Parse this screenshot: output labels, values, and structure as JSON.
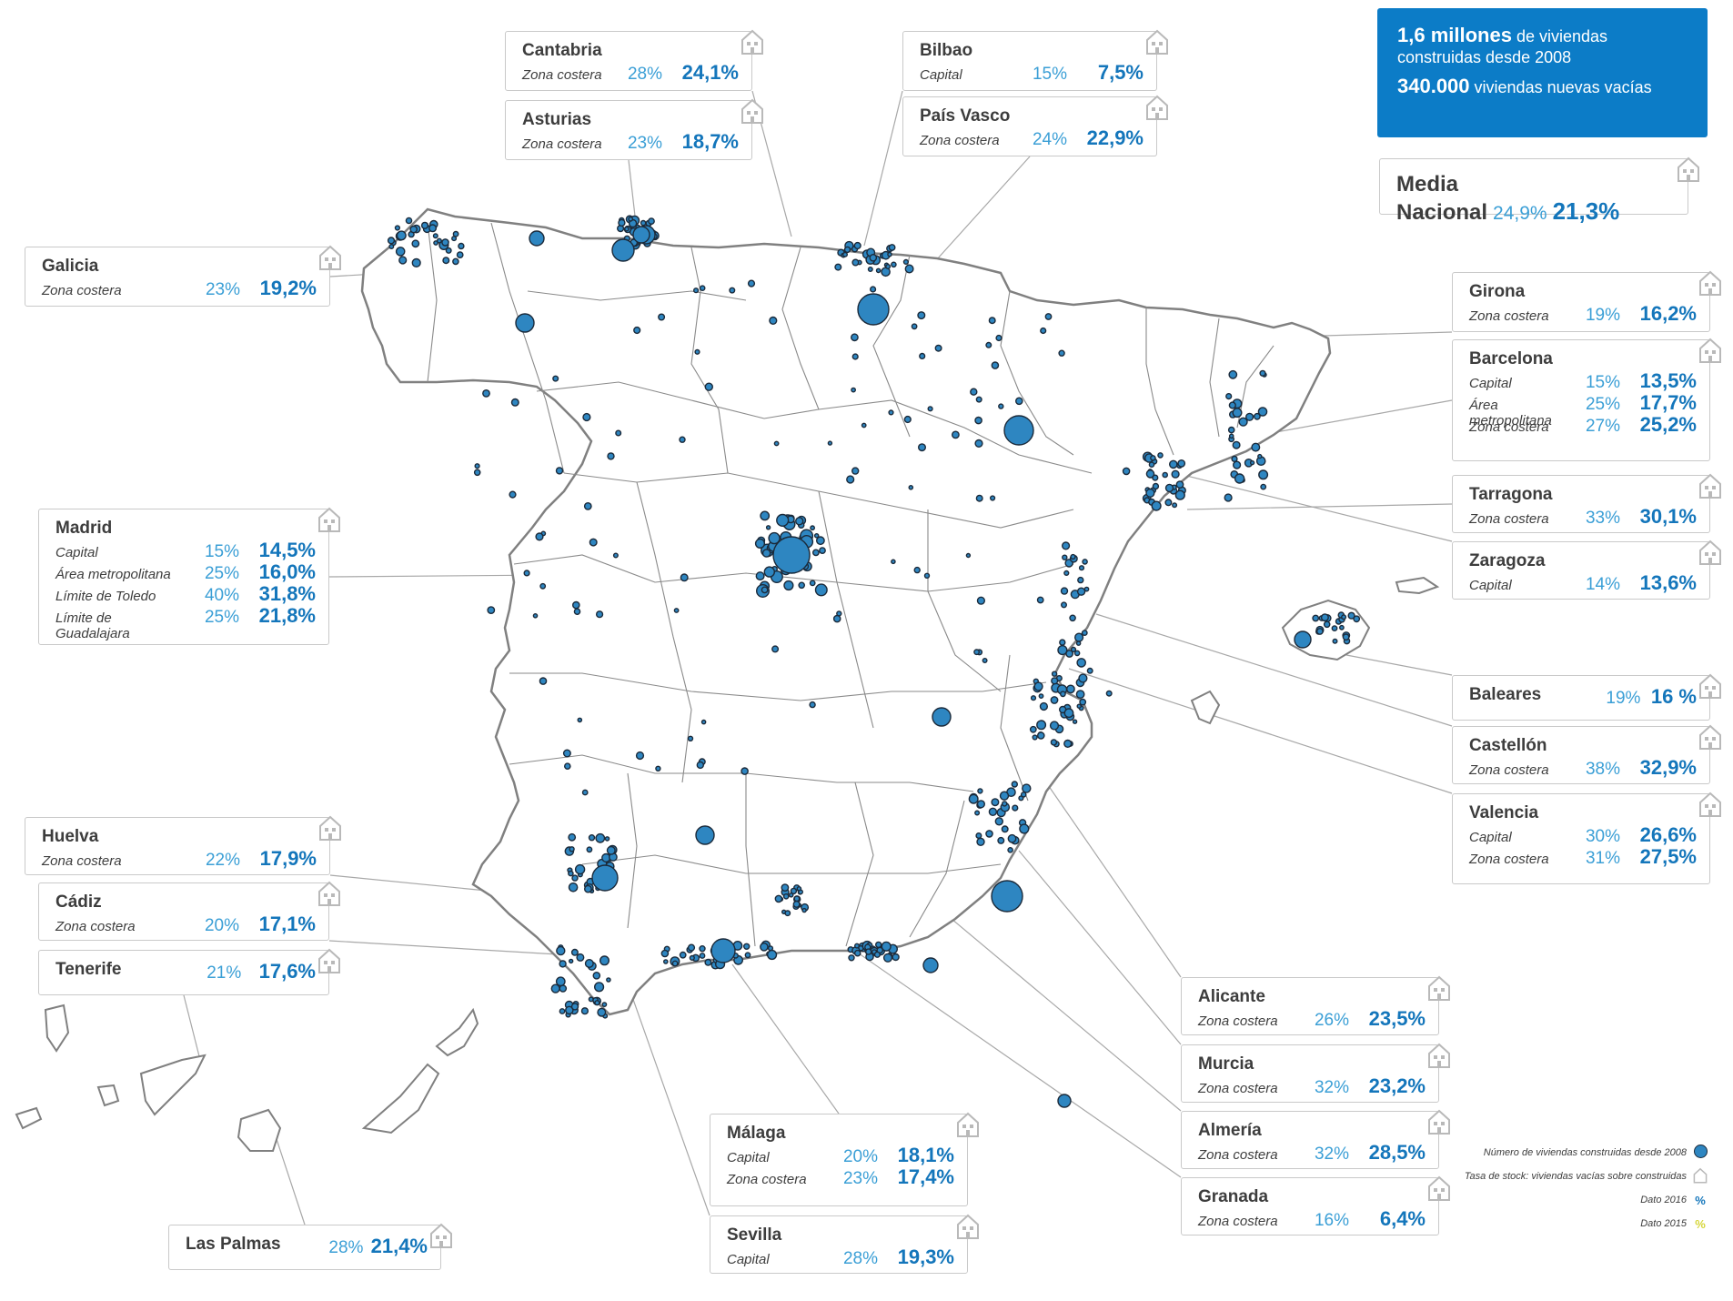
{
  "colors": {
    "accent": "#0c7cc7",
    "value_2016": "#3b9fd6",
    "value_2015": "#1476bb",
    "dot": "#2e86c1",
    "border": "#7a7a7a"
  },
  "info_box": {
    "line1_bold": "1,6 millones",
    "line1_rest": " de viviendas",
    "line2": "construidas desde 2008",
    "line3_bold": "340.000",
    "line3_rest": " viviendas nuevas vacías"
  },
  "national": {
    "label": "Media Nacional",
    "v2016": "24,9%",
    "v2015": "21,3%"
  },
  "cards": [
    {
      "id": "cantabria",
      "title": "Cantabria",
      "rows": [
        {
          "label": "Zona costera",
          "v2016": "28%",
          "v2015": "24,1%"
        }
      ]
    },
    {
      "id": "asturias",
      "title": "Asturias",
      "rows": [
        {
          "label": "Zona costera",
          "v2016": "23%",
          "v2015": "18,7%"
        }
      ]
    },
    {
      "id": "bilbao",
      "title": "Bilbao",
      "rows": [
        {
          "label": "Capital",
          "v2016": "15%",
          "v2015": "7,5%"
        }
      ]
    },
    {
      "id": "pais-vasco",
      "title": "País Vasco",
      "rows": [
        {
          "label": "Zona costera",
          "v2016": "24%",
          "v2015": "22,9%"
        }
      ]
    },
    {
      "id": "galicia",
      "title": "Galicia",
      "rows": [
        {
          "label": "Zona costera",
          "v2016": "23%",
          "v2015": "19,2%"
        }
      ]
    },
    {
      "id": "girona",
      "title": "Girona",
      "rows": [
        {
          "label": "Zona costera",
          "v2016": "19%",
          "v2015": "16,2%"
        }
      ]
    },
    {
      "id": "barcelona",
      "title": "Barcelona",
      "rows": [
        {
          "label": "Capital",
          "v2016": "15%",
          "v2015": "13,5%"
        },
        {
          "label": "Área metropolitana",
          "v2016": "25%",
          "v2015": "17,7%"
        },
        {
          "label": "Zona costera",
          "v2016": "27%",
          "v2015": "25,2%"
        }
      ]
    },
    {
      "id": "tarragona",
      "title": "Tarragona",
      "rows": [
        {
          "label": "Zona costera",
          "v2016": "33%",
          "v2015": "30,1%"
        }
      ]
    },
    {
      "id": "zaragoza",
      "title": "Zaragoza",
      "rows": [
        {
          "label": "Capital",
          "v2016": "14%",
          "v2015": "13,6%"
        }
      ]
    },
    {
      "id": "madrid",
      "title": "Madrid",
      "rows": [
        {
          "label": "Capital",
          "v2016": "15%",
          "v2015": "14,5%"
        },
        {
          "label": "Área metropolitana",
          "v2016": "25%",
          "v2015": "16,0%"
        },
        {
          "label": "Límite de Toledo",
          "v2016": "40%",
          "v2015": "31,8%"
        },
        {
          "label": "Límite de Guadalajara",
          "v2016": "25%",
          "v2015": "21,8%"
        }
      ]
    },
    {
      "id": "baleares",
      "title": "Baleares",
      "rows": [
        {
          "label": "",
          "v2016": "19%",
          "v2015": "16 %"
        }
      ]
    },
    {
      "id": "castellon",
      "title": "Castellón",
      "rows": [
        {
          "label": "Zona costera",
          "v2016": "38%",
          "v2015": "32,9%"
        }
      ]
    },
    {
      "id": "valencia",
      "title": "Valencia",
      "rows": [
        {
          "label": "Capital",
          "v2016": "30%",
          "v2015": "26,6%"
        },
        {
          "label": "Zona costera",
          "v2016": "31%",
          "v2015": "27,5%"
        }
      ]
    },
    {
      "id": "huelva",
      "title": "Huelva",
      "rows": [
        {
          "label": "Zona costera",
          "v2016": "22%",
          "v2015": "17,9%"
        }
      ]
    },
    {
      "id": "cadiz",
      "title": "Cádiz",
      "rows": [
        {
          "label": "Zona costera",
          "v2016": "20%",
          "v2015": "17,1%"
        }
      ]
    },
    {
      "id": "tenerife",
      "title": "Tenerife",
      "rows": [
        {
          "label": "",
          "v2016": "21%",
          "v2015": "17,6%"
        }
      ]
    },
    {
      "id": "alicante",
      "title": "Alicante",
      "rows": [
        {
          "label": "Zona costera",
          "v2016": "26%",
          "v2015": "23,5%"
        }
      ]
    },
    {
      "id": "murcia",
      "title": "Murcia",
      "rows": [
        {
          "label": "Zona costera",
          "v2016": "32%",
          "v2015": "23,2%"
        }
      ]
    },
    {
      "id": "almeria",
      "title": "Almería",
      "rows": [
        {
          "label": "Zona costera",
          "v2016": "32%",
          "v2015": "28,5%"
        }
      ]
    },
    {
      "id": "granada",
      "title": "Granada",
      "rows": [
        {
          "label": "Zona costera",
          "v2016": "16%",
          "v2015": "6,4%"
        }
      ]
    },
    {
      "id": "malaga",
      "title": "Málaga",
      "rows": [
        {
          "label": "Capital",
          "v2016": "20%",
          "v2015": "18,1%"
        },
        {
          "label": "Zona costera",
          "v2016": "23%",
          "v2015": "17,4%"
        }
      ]
    },
    {
      "id": "sevilla",
      "title": "Sevilla",
      "rows": [
        {
          "label": "Capital",
          "v2016": "28%",
          "v2015": "19,3%"
        }
      ]
    },
    {
      "id": "las-palmas",
      "title": "Las Palmas",
      "rows": [
        {
          "label": "",
          "v2016": "28%",
          "v2015": "21,4%"
        }
      ]
    }
  ],
  "legend": {
    "dots": "Número de viviendas construidas desde 2008",
    "house": "Tasa de stock: viviendas vacías sobre construidas",
    "y2016": "Dato 2016",
    "y2016_sym": "%",
    "y2015": "Dato 2015",
    "y2015_sym": "%"
  }
}
